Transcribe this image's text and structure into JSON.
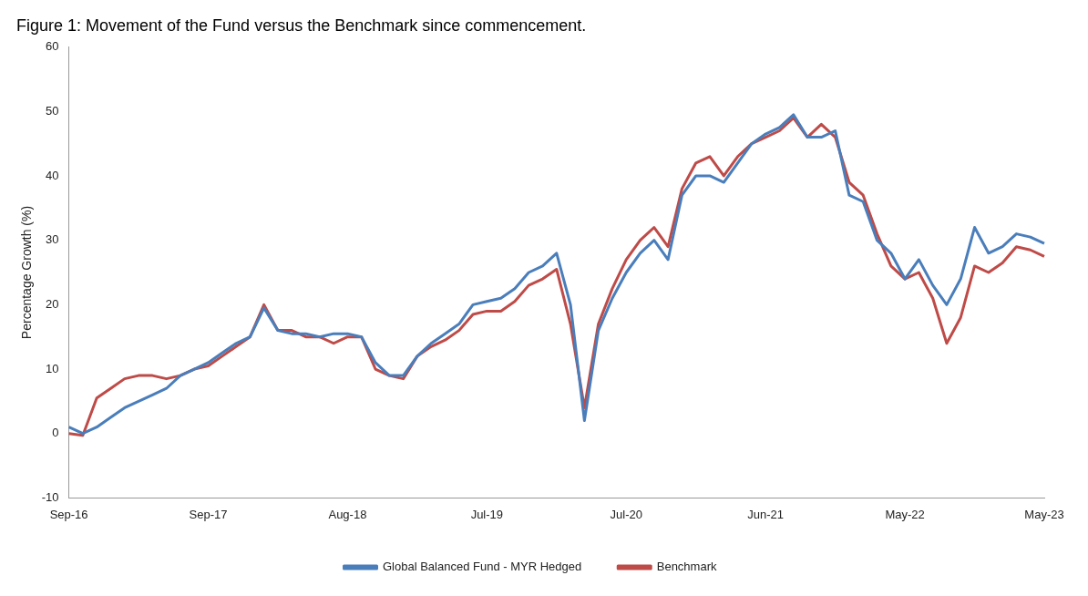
{
  "chart_data": {
    "type": "line",
    "title": "Figure 1: Movement of the Fund versus the Benchmark since commencement.",
    "ylabel": "Percentage Growth (%)",
    "categories": [
      "Sep-16",
      null,
      null,
      null,
      null,
      null,
      null,
      null,
      null,
      null,
      "Sep-17",
      null,
      null,
      null,
      null,
      null,
      null,
      null,
      null,
      null,
      "Aug-18",
      null,
      null,
      null,
      null,
      null,
      null,
      null,
      null,
      null,
      "Jul-19",
      null,
      null,
      null,
      null,
      null,
      null,
      null,
      null,
      null,
      "Jul-20",
      null,
      null,
      null,
      null,
      null,
      null,
      null,
      null,
      null,
      "Jun-21",
      null,
      null,
      null,
      null,
      null,
      null,
      null,
      null,
      null,
      "May-22",
      null,
      null,
      null,
      null,
      null,
      null,
      null,
      null,
      null,
      "May-23"
    ],
    "series": [
      {
        "name": "Global Balanced Fund - MYR Hedged",
        "color": "#4a7ebb",
        "values": [
          1,
          0,
          1,
          2.5,
          4,
          5,
          6,
          7,
          9,
          10,
          11,
          12.5,
          14,
          15,
          19.5,
          16,
          15.5,
          15.5,
          15,
          15.5,
          15.5,
          15,
          11,
          9,
          9,
          12,
          14,
          15.5,
          17,
          20,
          20.5,
          21,
          22.5,
          25,
          26,
          28,
          20,
          2,
          16,
          21,
          25,
          28,
          30,
          27,
          37,
          40,
          40,
          39,
          42,
          45,
          46.5,
          47.5,
          49.5,
          46,
          46,
          47,
          37,
          36,
          30,
          28,
          24,
          27,
          23,
          20,
          24,
          32,
          28,
          29,
          31,
          30.5,
          29.5
        ]
      },
      {
        "name": "Benchmark",
        "color": "#be4b48",
        "values": [
          0,
          -0.3,
          5.5,
          7,
          8.5,
          9,
          9,
          8.5,
          9,
          10,
          10.5,
          12,
          13.5,
          15,
          20,
          16,
          16,
          15,
          15,
          14,
          15,
          15,
          10,
          9,
          8.5,
          12,
          13.5,
          14.5,
          16,
          18.5,
          19,
          19,
          20.5,
          23,
          24,
          25.5,
          17,
          4,
          17,
          22.5,
          27,
          30,
          32,
          29,
          38,
          42,
          43,
          40,
          43,
          45,
          46,
          47,
          49,
          46,
          48,
          46,
          39,
          37,
          31,
          26,
          24,
          25,
          21,
          14,
          18,
          26,
          25,
          26.5,
          29,
          28.5,
          27.5
        ]
      }
    ],
    "ylim": [
      -10,
      60
    ],
    "yticks": [
      -10,
      0,
      10,
      20,
      30,
      40,
      50,
      60
    ],
    "grid": false,
    "legend": "bottom",
    "marker": "none",
    "line_style": "solid"
  }
}
